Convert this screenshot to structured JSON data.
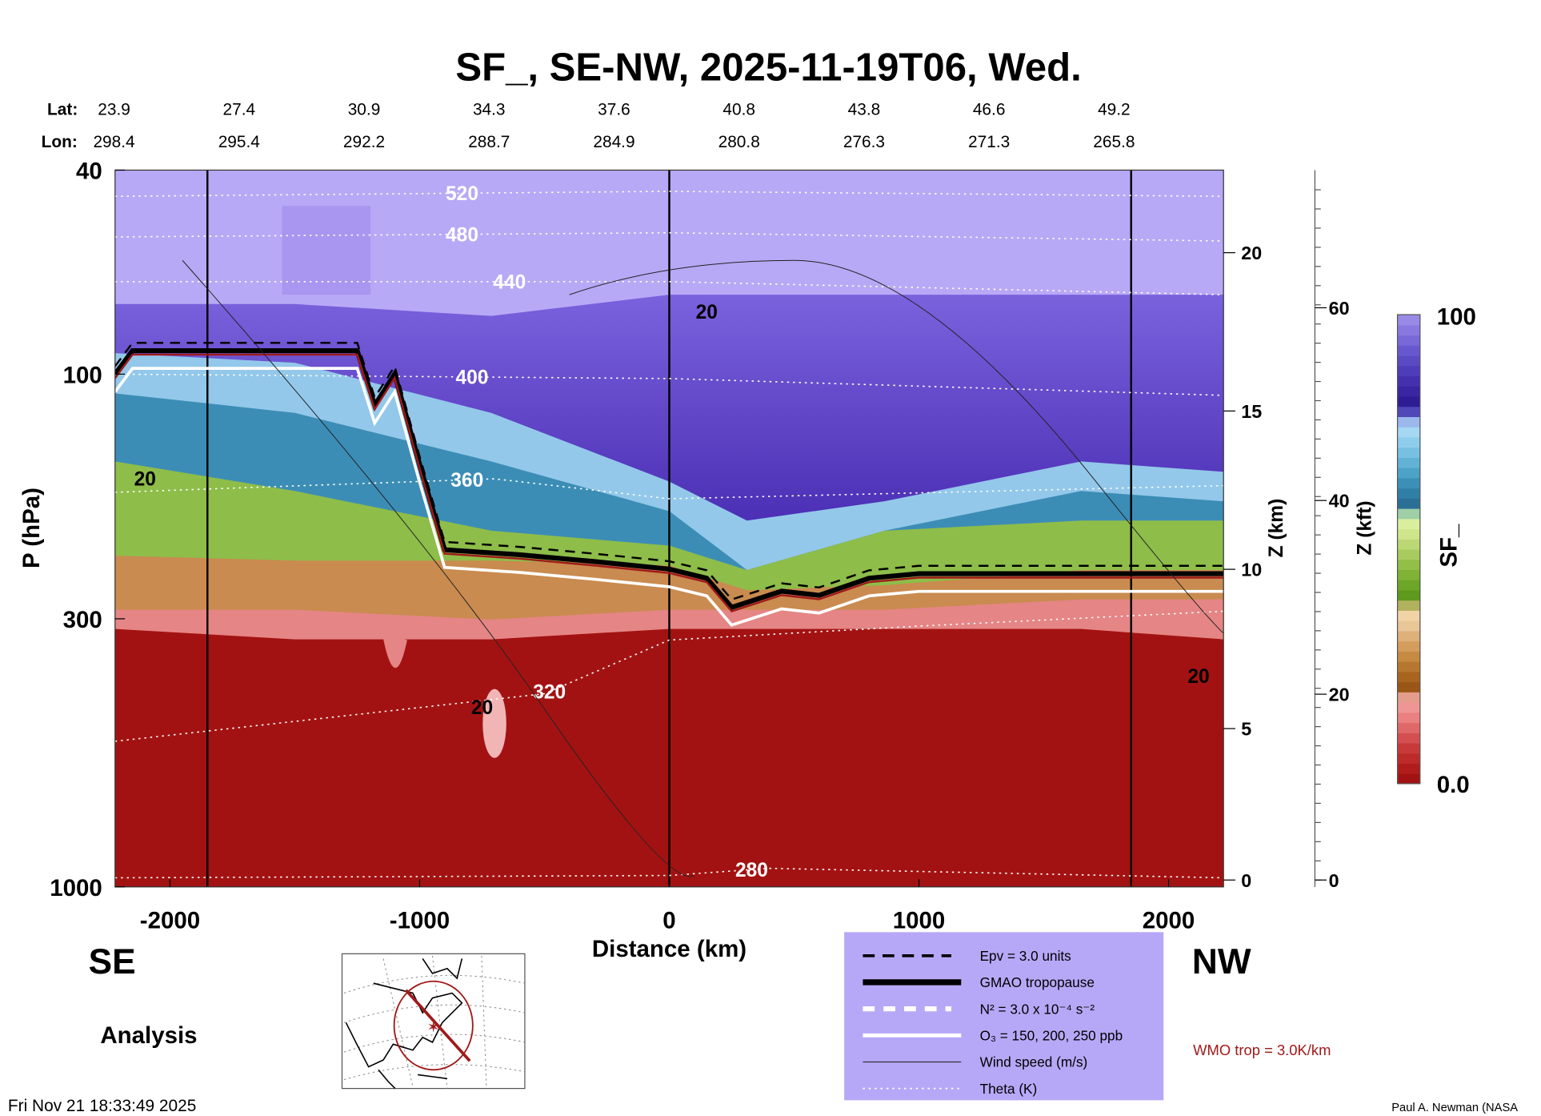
{
  "chart_data": {
    "type": "heatmap",
    "title": "SF_, SE-NW, 2025-11-19T06, Wed.",
    "xlabel": "Distance (km)",
    "ylabel": "P (hPa)",
    "right_axis_1_label": "Z (km)",
    "right_axis_2_label": "Z (kft)",
    "colorbar_label": "SF_",
    "colorbar_max_label": "100",
    "colorbar_min_label": "0.0",
    "xlim": [
      -2220,
      2220
    ],
    "ylim_hpa": [
      40,
      1000
    ],
    "x_ticks": [
      "-2000",
      "-1000",
      "0",
      "1000",
      "2000"
    ],
    "x_tick_values": [
      -2000,
      -1000,
      0,
      1000,
      2000
    ],
    "y_ticks": [
      "40",
      "100",
      "300",
      "1000"
    ],
    "y_tick_values": [
      40,
      100,
      300,
      1000
    ],
    "z_km_ticks": [
      "0",
      "5",
      "10",
      "15",
      "20"
    ],
    "z_kft_ticks": [
      "0",
      "20",
      "40",
      "60"
    ],
    "lat_label": "Lat:",
    "lon_label": "Lon:",
    "lats": [
      "23.9",
      "27.4",
      "30.9",
      "34.3",
      "37.6",
      "40.8",
      "43.8",
      "46.6",
      "49.2"
    ],
    "lons": [
      "298.4",
      "295.4",
      "292.2",
      "288.7",
      "284.9",
      "280.8",
      "276.3",
      "271.3",
      "265.8"
    ],
    "marker_lines_km": [
      -1850,
      0,
      1850
    ],
    "field_x_km": [
      -2220,
      -1500,
      -713,
      0,
      311,
      862,
      1650,
      2220
    ],
    "field_bands": [
      {
        "name": "stratosphere-high",
        "color": "#4a2db5",
        "top_hpa": [
          73,
          73,
          77,
          70,
          70,
          70,
          70,
          70
        ]
      },
      {
        "name": "light-blue",
        "color": "#93c8ea",
        "top_hpa": [
          91,
          95,
          119,
          162,
          193,
          177,
          148,
          155
        ]
      },
      {
        "name": "teal",
        "color": "#3c8db6",
        "top_hpa": [
          109,
          119,
          148,
          185,
          241,
          202,
          169,
          177
        ]
      },
      {
        "name": "green",
        "color": "#8ebd4a",
        "top_hpa": [
          148,
          169,
          202,
          216,
          241,
          202,
          193,
          193
        ]
      },
      {
        "name": "brown",
        "color": "#c98b4f",
        "top_hpa": [
          226,
          231,
          231,
          236,
          264,
          258,
          241,
          241
        ]
      },
      {
        "name": "pink",
        "color": "#e58585",
        "top_hpa": [
          288,
          288,
          301,
          288,
          288,
          288,
          275,
          275
        ]
      },
      {
        "name": "red",
        "color": "#a31212",
        "top_hpa": [
          314,
          329,
          329,
          314,
          314,
          314,
          314,
          329
        ]
      }
    ],
    "gmao_tropopause": {
      "x_km": [
        -2220,
        -2150,
        -1250,
        -1180,
        -1100,
        -1000,
        -900,
        -600,
        -300,
        0,
        150,
        250,
        450,
        600,
        800,
        1000,
        1500,
        2220
      ],
      "p_hpa": [
        100,
        90,
        90,
        115,
        100,
        150,
        220,
        225,
        232,
        240,
        250,
        285,
        265,
        270,
        250,
        245,
        245,
        245
      ]
    },
    "theta": [
      {
        "label": "520",
        "x_km": [
          -2220,
          0,
          2220
        ],
        "p_hpa": [
          45,
          44,
          45
        ]
      },
      {
        "label": "480",
        "x_km": [
          -2220,
          0,
          2220
        ],
        "p_hpa": [
          54,
          53,
          55
        ]
      },
      {
        "label": "440",
        "x_km": [
          -2220,
          0,
          2220
        ],
        "p_hpa": [
          66,
          66,
          70
        ]
      },
      {
        "label": "400",
        "x_km": [
          -2220,
          0,
          2220
        ],
        "p_hpa": [
          100,
          102,
          110
        ]
      },
      {
        "label": "360",
        "x_km": [
          -2220,
          -700,
          0,
          2220
        ],
        "p_hpa": [
          170,
          160,
          175,
          165
        ]
      },
      {
        "label": "320",
        "x_km": [
          -2220,
          -500,
          0,
          1000,
          2220
        ],
        "p_hpa": [
          520,
          420,
          330,
          310,
          290
        ]
      },
      {
        "label": "280",
        "x_km": [
          -2220,
          0,
          400,
          2220
        ],
        "p_hpa": [
          960,
          950,
          920,
          960
        ]
      }
    ],
    "theta_label_pos_km": {
      "520": -830,
      "480": -830,
      "440": -640,
      "400": -790,
      "360": -810,
      "320": -480,
      "280": 330
    },
    "wind_labels": [
      {
        "text": "20",
        "x_km": 150,
        "p_hpa": 78
      },
      {
        "text": "20",
        "x_km": -2100,
        "p_hpa": 165
      },
      {
        "text": "20",
        "x_km": -750,
        "p_hpa": 460
      },
      {
        "text": "20",
        "x_km": 2120,
        "p_hpa": 400
      }
    ]
  },
  "labels": {
    "left_dir": "SE",
    "right_dir": "NW",
    "analysis": "Analysis",
    "timestamp": "Fri Nov 21 18:33:49 2025",
    "wmo": "WMO trop = 3.0K/km",
    "author": "Paul A. Newman (NASA"
  },
  "legend": {
    "epv": "Epv = 3.0 units",
    "gmao": "GMAO tropopause",
    "n2": "N² = 3.0 x 10⁻⁴ s⁻²",
    "o3": "O₃ = 150, 200, 250 ppb",
    "wind": "Wind speed (m/s)",
    "theta": "Theta (K)"
  },
  "colors": {
    "legend_bg": "#b7a8f7",
    "wmo": "#a01a1a",
    "lavender": "#b8a9f6"
  }
}
